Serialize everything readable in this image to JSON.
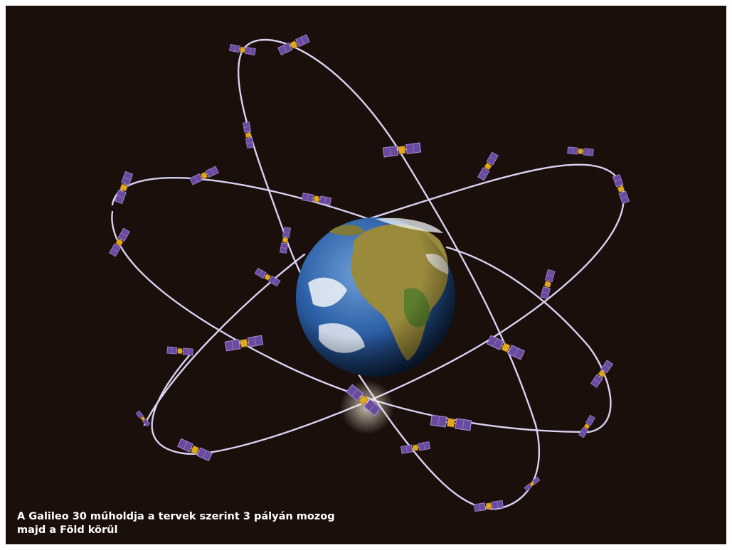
{
  "caption": {
    "line1": "A Galileo 30 műholdja a tervek szerint 3 pályán mozog",
    "line2": "majd a Föld körül"
  },
  "colors": {
    "background": "#1b0f0c",
    "orbit": "#d9d2f0",
    "panel": "#6a4a9e",
    "panel_edge": "#a58bd6",
    "satellite_body": "#e0a820",
    "ocean": "#2c5fa6",
    "land": "#9a8a3c",
    "cloud": "#f2f4f8",
    "caption_text": "#ffffff"
  },
  "satellite_count": 30,
  "orbit_count": 3,
  "icons": [
    "earth-globe-icon",
    "satellite-icon"
  ]
}
